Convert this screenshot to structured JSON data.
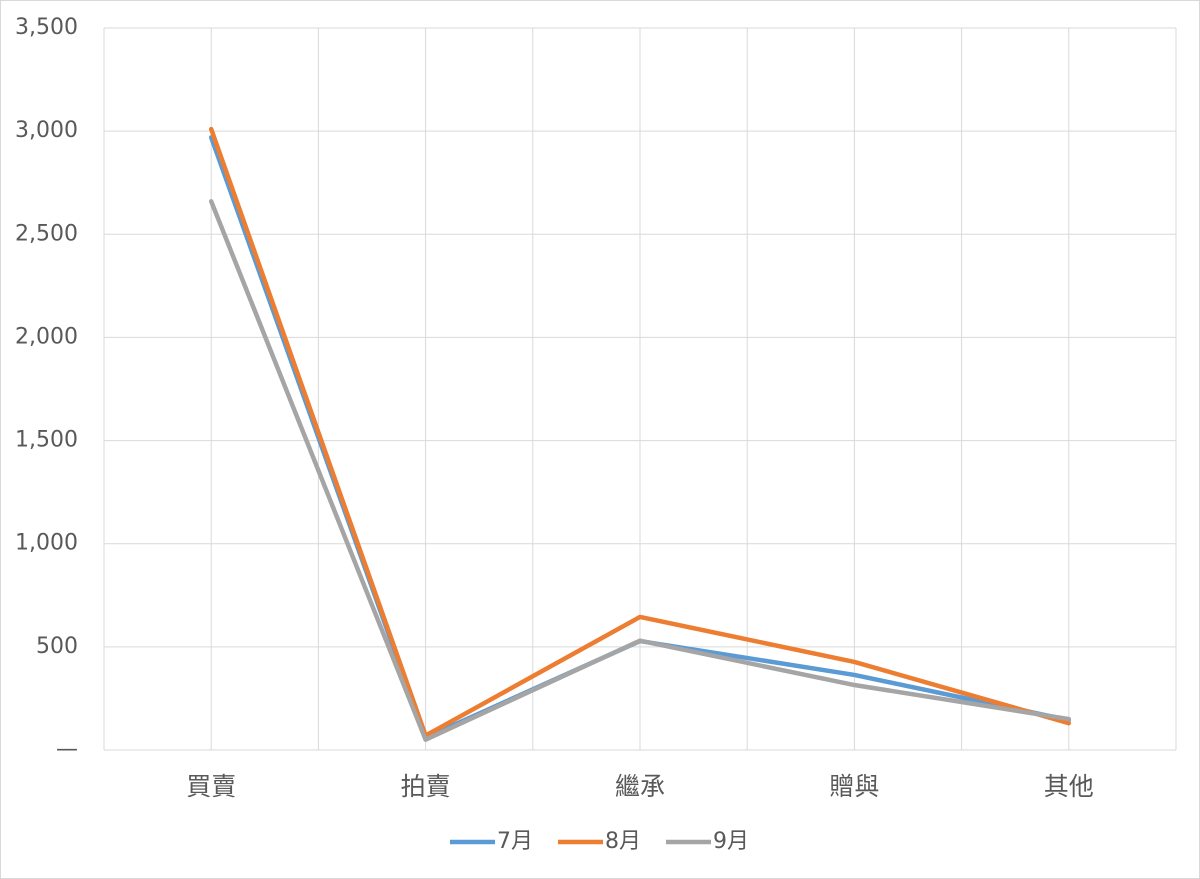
{
  "chart_data": {
    "type": "line",
    "categories": [
      "買賣",
      "拍賣",
      "繼承",
      "贈與",
      "其他"
    ],
    "series": [
      {
        "name": "7月",
        "color": "#5b9bd5",
        "values": [
          2970,
          60,
          528,
          364,
          145
        ]
      },
      {
        "name": "8月",
        "color": "#ed7d31",
        "values": [
          3010,
          70,
          645,
          427,
          130
        ]
      },
      {
        "name": "9月",
        "color": "#a5a5a5",
        "values": [
          2660,
          50,
          530,
          315,
          150
        ]
      }
    ],
    "ylim": [
      0,
      3500
    ],
    "yticks": [
      {
        "value": 0,
        "label": "—"
      },
      500,
      {
        "value": 1000,
        "label": "1,000"
      },
      {
        "value": 1500,
        "label": "1,500"
      },
      {
        "value": 2000,
        "label": "2,000"
      },
      {
        "value": 2500,
        "label": "2,500"
      },
      {
        "value": 3000,
        "label": "3,000"
      },
      {
        "value": 3500,
        "label": "3,500"
      }
    ],
    "grid": true,
    "legend": "bottom"
  }
}
